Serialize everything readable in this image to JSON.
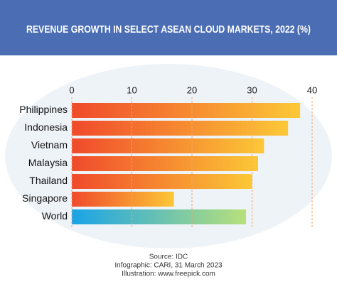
{
  "chart_data": {
    "type": "hbar",
    "title": "REVENUE GROWTH IN SELECT ASEAN CLOUD MARKETS, 2022 (%)",
    "categories": [
      "Philippines",
      "Indonesia",
      "Vietnam",
      "Malaysia",
      "Thailand",
      "Singapore",
      "World"
    ],
    "values": [
      38,
      36,
      32,
      31,
      30,
      17,
      29
    ],
    "colors": [
      [
        "#f04a2b",
        "#fcc836"
      ],
      [
        "#f04a2b",
        "#fcc836"
      ],
      [
        "#f04a2b",
        "#fcc836"
      ],
      [
        "#f04a2b",
        "#fcc836"
      ],
      [
        "#f04a2b",
        "#fcc836"
      ],
      [
        "#f04a2b",
        "#fcc836"
      ],
      [
        "#1aa3e8",
        "#b8e07a"
      ]
    ],
    "xlim": [
      0,
      40
    ],
    "xticks": [
      0,
      10,
      20,
      30,
      40
    ],
    "grid": true,
    "grid_color": "#f6a46a",
    "notes": [
      "Source: IDC",
      "Infographic: CARI, 31 March 2023",
      "Illustration: www.freepick.com"
    ]
  }
}
